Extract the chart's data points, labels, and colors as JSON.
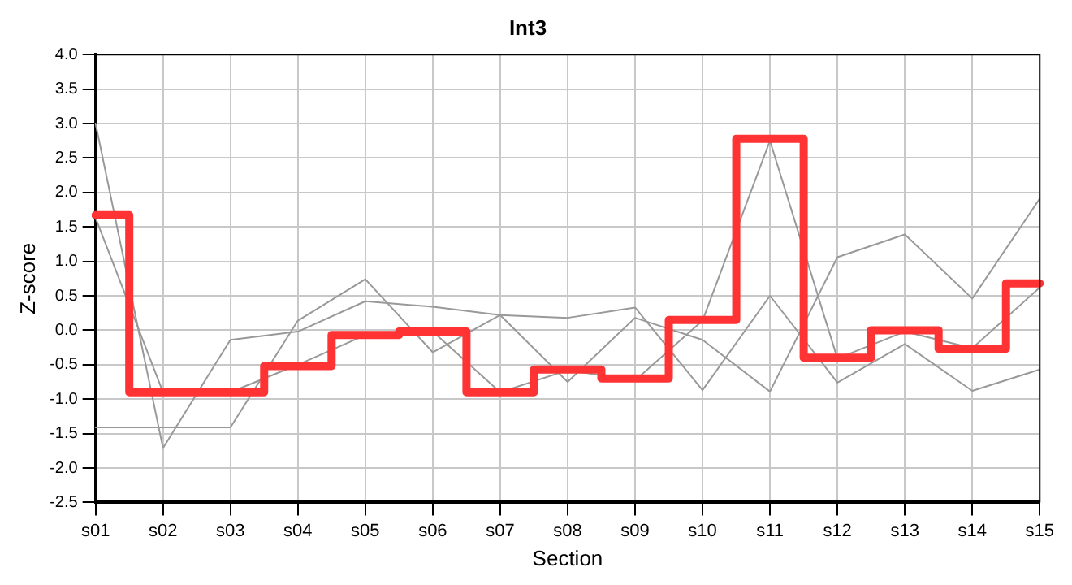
{
  "chart_data": {
    "type": "line",
    "title": "Int3",
    "xlabel": "Section",
    "ylabel": "Z-score",
    "categories": [
      "s01",
      "s02",
      "s03",
      "s04",
      "s05",
      "s06",
      "s07",
      "s08",
      "s09",
      "s10",
      "s11",
      "s12",
      "s13",
      "s14",
      "s15"
    ],
    "series": [
      {
        "color": "#999999",
        "values": [
          3.0,
          -1.71,
          -0.14,
          -0.02,
          0.42,
          0.34,
          0.22,
          0.18,
          0.33,
          -0.87,
          0.5,
          -0.76,
          -0.2,
          -0.88,
          -0.57
        ]
      },
      {
        "color": "#999999",
        "values": [
          1.63,
          -0.9,
          -0.9,
          -0.5,
          -0.07,
          -0.02,
          -0.9,
          -0.58,
          -0.73,
          0.14,
          2.75,
          -0.41,
          -0.02,
          -0.26,
          0.62
        ]
      },
      {
        "color": "#999999",
        "values": [
          -1.41,
          -1.41,
          -1.41,
          0.14,
          0.74,
          -0.32,
          0.22,
          -0.75,
          0.18,
          -0.14,
          -0.89,
          1.06,
          1.39,
          0.46,
          1.91
        ]
      },
      {
        "type": "step",
        "color": "#ff3333",
        "values": [
          1.67,
          -0.9,
          -0.9,
          -0.52,
          -0.07,
          -0.02,
          -0.9,
          -0.57,
          -0.7,
          0.15,
          2.78,
          -0.4,
          0.0,
          -0.27,
          0.68
        ]
      }
    ],
    "ylim": [
      -2.5,
      4.0
    ],
    "yticks": [
      {
        "value": -2.5,
        "label": "-2.5"
      },
      {
        "value": -2,
        "label": "-2.0"
      },
      {
        "value": -1.5,
        "label": "-1.5"
      },
      {
        "value": -1,
        "label": "-1.0"
      },
      {
        "value": -0.5,
        "label": "-0.5"
      },
      {
        "value": 0,
        "label": "0.0"
      },
      {
        "value": 0.5,
        "label": "0.5"
      },
      {
        "value": 1,
        "label": "1.0"
      },
      {
        "value": 1.5,
        "label": "1.5"
      },
      {
        "value": 2,
        "label": "2.0"
      },
      {
        "value": 2.5,
        "label": "2.5"
      },
      {
        "value": 3,
        "label": "3.0"
      },
      {
        "value": 3.5,
        "label": "3.5"
      },
      {
        "value": 4,
        "label": "4.0"
      }
    ],
    "grid": true,
    "legend": false,
    "marker": "none",
    "line_style": "solid"
  }
}
